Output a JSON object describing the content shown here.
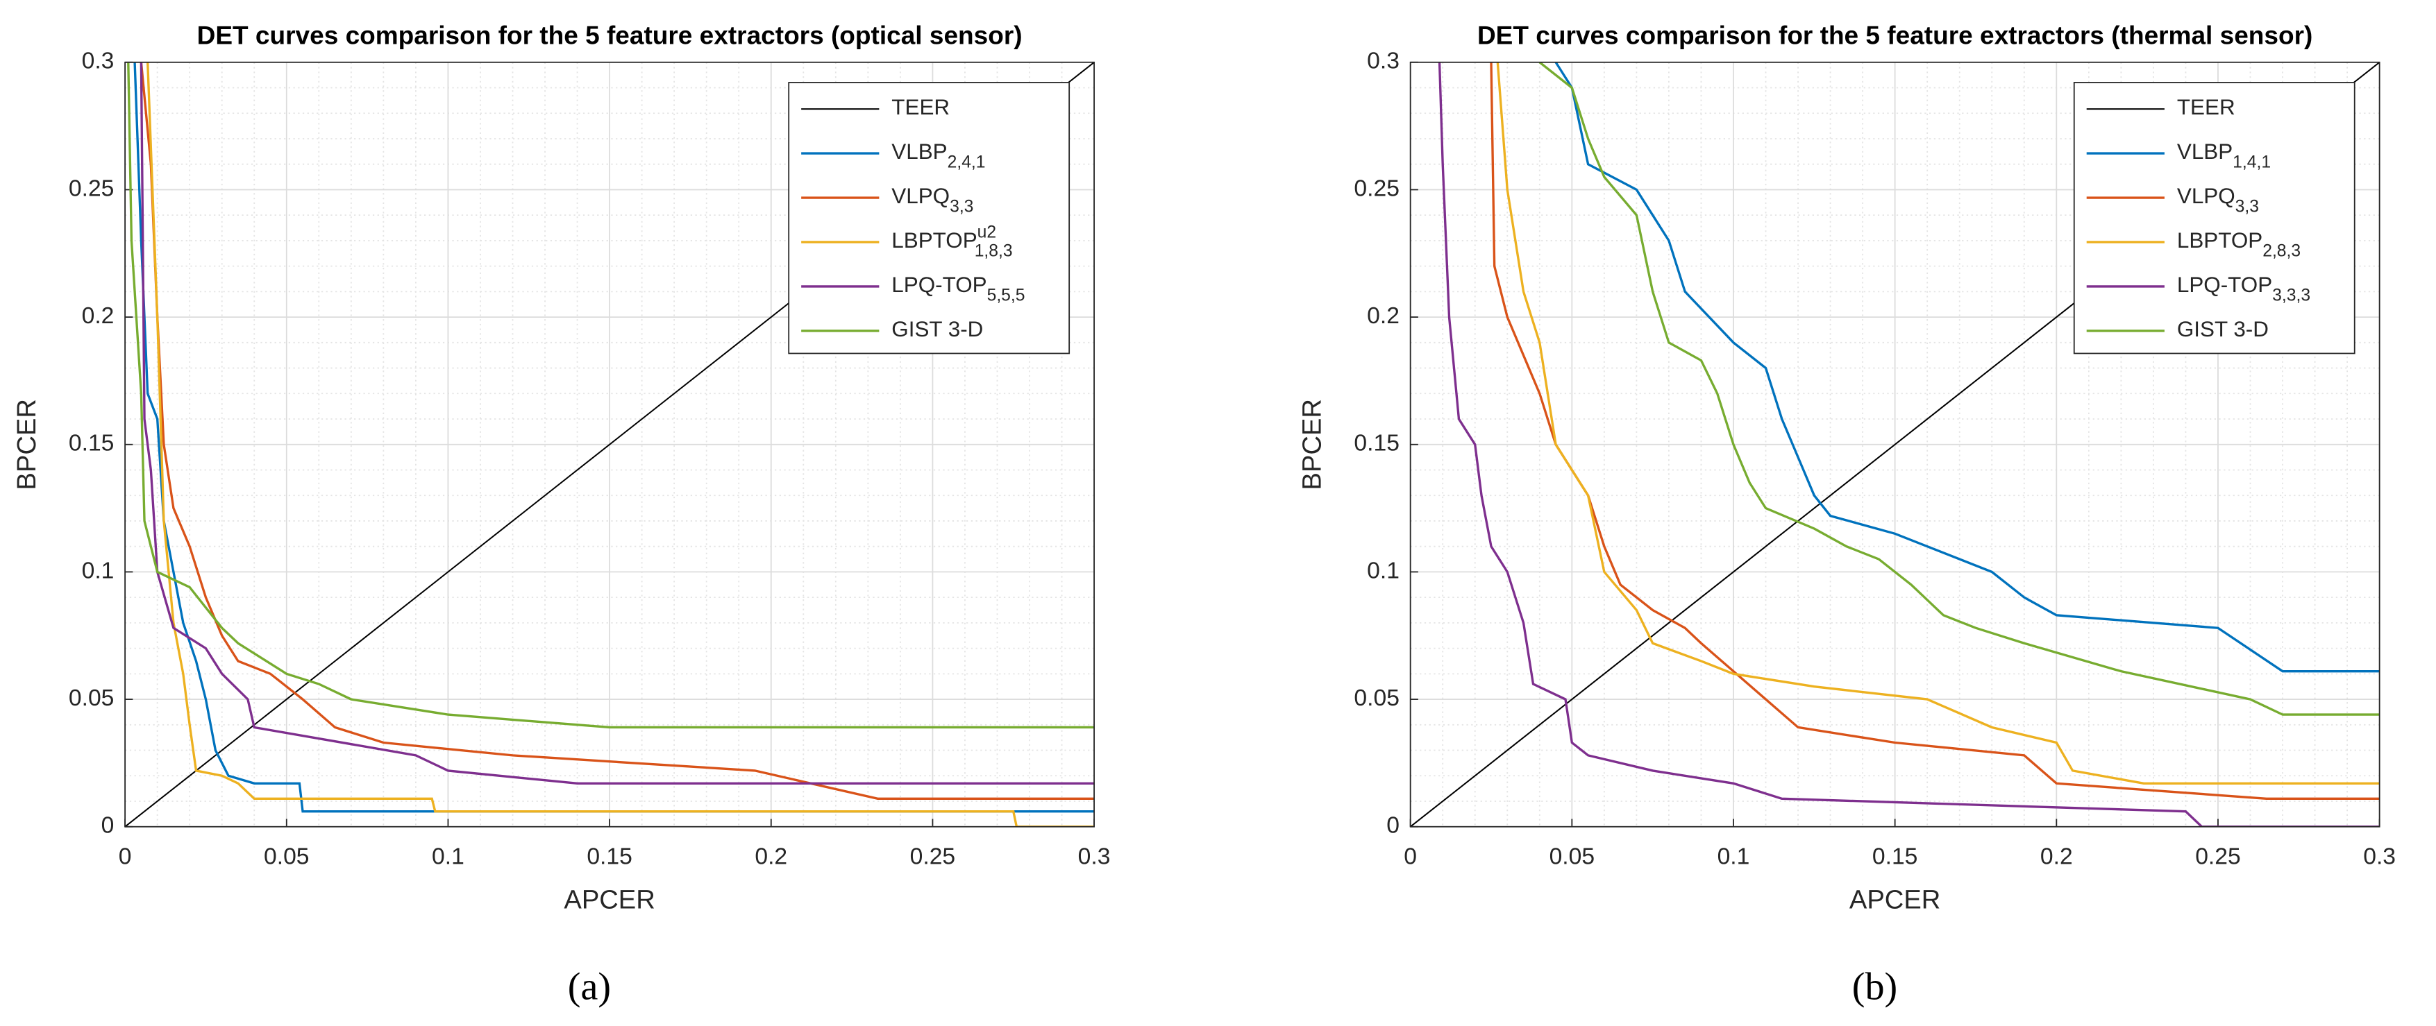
{
  "chart_data": [
    {
      "type": "line",
      "title": "DET curves comparison for the 5 feature extractors (optical sensor)",
      "caption": "(a)",
      "xlabel": "APCER",
      "ylabel": "BPCER",
      "xlim": [
        0,
        0.3
      ],
      "ylim": [
        0,
        0.3
      ],
      "xticks": [
        0,
        0.05,
        0.1,
        0.15,
        0.2,
        0.25,
        0.3
      ],
      "yticks": [
        0,
        0.05,
        0.1,
        0.15,
        0.2,
        0.25,
        0.3
      ],
      "grid": true,
      "minor_grid": true,
      "legend": "upper right",
      "series": [
        {
          "name": "TEER",
          "color": "#000000",
          "x": [
            0,
            0.3
          ],
          "values": [
            0,
            0.3
          ]
        },
        {
          "name": "VLBP",
          "name_sub": "2,4,1",
          "color": "#0072BD",
          "x": [
            0.003,
            0.005,
            0.007,
            0.01,
            0.012,
            0.015,
            0.018,
            0.022,
            0.025,
            0.028,
            0.032,
            0.04,
            0.054,
            0.055,
            0.3
          ],
          "values": [
            0.3,
            0.23,
            0.17,
            0.16,
            0.12,
            0.1,
            0.08,
            0.065,
            0.05,
            0.03,
            0.02,
            0.017,
            0.017,
            0.006,
            0.006
          ]
        },
        {
          "name": "VLPQ",
          "name_sub": "3,3",
          "color": "#D95319",
          "x": [
            0.005,
            0.008,
            0.01,
            0.012,
            0.015,
            0.02,
            0.025,
            0.03,
            0.035,
            0.045,
            0.055,
            0.065,
            0.08,
            0.12,
            0.195,
            0.233,
            0.3
          ],
          "values": [
            0.3,
            0.26,
            0.2,
            0.15,
            0.125,
            0.11,
            0.09,
            0.075,
            0.065,
            0.06,
            0.05,
            0.039,
            0.033,
            0.028,
            0.022,
            0.011,
            0.011
          ]
        },
        {
          "name": "LBPTOP",
          "name_sup": "u2",
          "name_sub": "1,8,3",
          "color": "#EDB120",
          "x": [
            0.007,
            0.01,
            0.012,
            0.015,
            0.018,
            0.02,
            0.022,
            0.03,
            0.035,
            0.04,
            0.095,
            0.096,
            0.275,
            0.276,
            0.3
          ],
          "values": [
            0.3,
            0.2,
            0.12,
            0.08,
            0.06,
            0.04,
            0.022,
            0.02,
            0.017,
            0.011,
            0.011,
            0.006,
            0.006,
            0,
            0
          ]
        },
        {
          "name": "LPQ-TOP",
          "name_sub": "5,5,5",
          "color": "#7E2F8E",
          "x": [
            0.005,
            0.006,
            0.008,
            0.01,
            0.015,
            0.025,
            0.03,
            0.038,
            0.04,
            0.09,
            0.1,
            0.14,
            0.3
          ],
          "values": [
            0.3,
            0.16,
            0.14,
            0.1,
            0.078,
            0.07,
            0.06,
            0.05,
            0.039,
            0.028,
            0.022,
            0.017,
            0.017
          ]
        },
        {
          "name": "GIST 3-D",
          "color": "#77AC30",
          "x": [
            0.001,
            0.002,
            0.005,
            0.006,
            0.01,
            0.02,
            0.03,
            0.035,
            0.05,
            0.06,
            0.07,
            0.1,
            0.15,
            0.3
          ],
          "values": [
            0.3,
            0.23,
            0.17,
            0.12,
            0.1,
            0.094,
            0.078,
            0.072,
            0.06,
            0.056,
            0.05,
            0.044,
            0.039,
            0.039
          ]
        }
      ]
    },
    {
      "type": "line",
      "title": "DET curves comparison for the 5 feature extractors (thermal sensor)",
      "caption": "(b)",
      "xlabel": "APCER",
      "ylabel": "BPCER",
      "xlim": [
        0,
        0.3
      ],
      "ylim": [
        0,
        0.3
      ],
      "xticks": [
        0,
        0.05,
        0.1,
        0.15,
        0.2,
        0.25,
        0.3
      ],
      "yticks": [
        0,
        0.05,
        0.1,
        0.15,
        0.2,
        0.25,
        0.3
      ],
      "grid": true,
      "minor_grid": true,
      "legend": "upper right",
      "series": [
        {
          "name": "TEER",
          "color": "#000000",
          "x": [
            0,
            0.3
          ],
          "values": [
            0,
            0.3
          ]
        },
        {
          "name": "VLBP",
          "name_sub": "1,4,1",
          "color": "#0072BD",
          "x": [
            0.045,
            0.05,
            0.055,
            0.07,
            0.08,
            0.085,
            0.1,
            0.11,
            0.115,
            0.12,
            0.125,
            0.13,
            0.15,
            0.16,
            0.18,
            0.19,
            0.2,
            0.25,
            0.27,
            0.3
          ],
          "values": [
            0.3,
            0.29,
            0.26,
            0.25,
            0.23,
            0.21,
            0.19,
            0.18,
            0.16,
            0.145,
            0.13,
            0.122,
            0.115,
            0.11,
            0.1,
            0.09,
            0.083,
            0.078,
            0.061,
            0.061
          ]
        },
        {
          "name": "VLPQ",
          "name_sub": "3,3",
          "color": "#D95319",
          "x": [
            0.025,
            0.026,
            0.03,
            0.035,
            0.04,
            0.045,
            0.05,
            0.055,
            0.06,
            0.065,
            0.075,
            0.085,
            0.09,
            0.1,
            0.11,
            0.12,
            0.15,
            0.19,
            0.2,
            0.265,
            0.3
          ],
          "values": [
            0.3,
            0.22,
            0.2,
            0.185,
            0.17,
            0.15,
            0.14,
            0.13,
            0.11,
            0.095,
            0.085,
            0.078,
            0.072,
            0.061,
            0.05,
            0.039,
            0.033,
            0.028,
            0.017,
            0.011,
            0.011
          ]
        },
        {
          "name": "LBPTOP",
          "name_sub": "2,8,3",
          "color": "#EDB120",
          "x": [
            0.027,
            0.03,
            0.035,
            0.04,
            0.045,
            0.055,
            0.06,
            0.07,
            0.075,
            0.09,
            0.1,
            0.125,
            0.16,
            0.18,
            0.2,
            0.205,
            0.227,
            0.3
          ],
          "values": [
            0.3,
            0.25,
            0.21,
            0.19,
            0.15,
            0.13,
            0.1,
            0.085,
            0.072,
            0.065,
            0.06,
            0.055,
            0.05,
            0.039,
            0.033,
            0.022,
            0.017,
            0.017
          ]
        },
        {
          "name": "LPQ-TOP",
          "name_sub": "3,3,3",
          "color": "#7E2F8E",
          "x": [
            0.009,
            0.01,
            0.012,
            0.015,
            0.02,
            0.022,
            0.025,
            0.03,
            0.035,
            0.038,
            0.048,
            0.05,
            0.055,
            0.075,
            0.1,
            0.115,
            0.24,
            0.245,
            0.3
          ],
          "values": [
            0.3,
            0.26,
            0.2,
            0.16,
            0.15,
            0.13,
            0.11,
            0.1,
            0.08,
            0.056,
            0.05,
            0.033,
            0.028,
            0.022,
            0.017,
            0.011,
            0.006,
            0,
            0
          ]
        },
        {
          "name": "GIST 3-D",
          "color": "#77AC30",
          "x": [
            0.04,
            0.05,
            0.055,
            0.06,
            0.07,
            0.075,
            0.08,
            0.09,
            0.095,
            0.1,
            0.105,
            0.11,
            0.125,
            0.135,
            0.145,
            0.155,
            0.165,
            0.175,
            0.19,
            0.22,
            0.26,
            0.27,
            0.3
          ],
          "values": [
            0.3,
            0.29,
            0.27,
            0.255,
            0.24,
            0.21,
            0.19,
            0.183,
            0.17,
            0.15,
            0.135,
            0.125,
            0.117,
            0.11,
            0.105,
            0.095,
            0.083,
            0.078,
            0.072,
            0.061,
            0.05,
            0.044,
            0.044
          ]
        }
      ]
    }
  ]
}
